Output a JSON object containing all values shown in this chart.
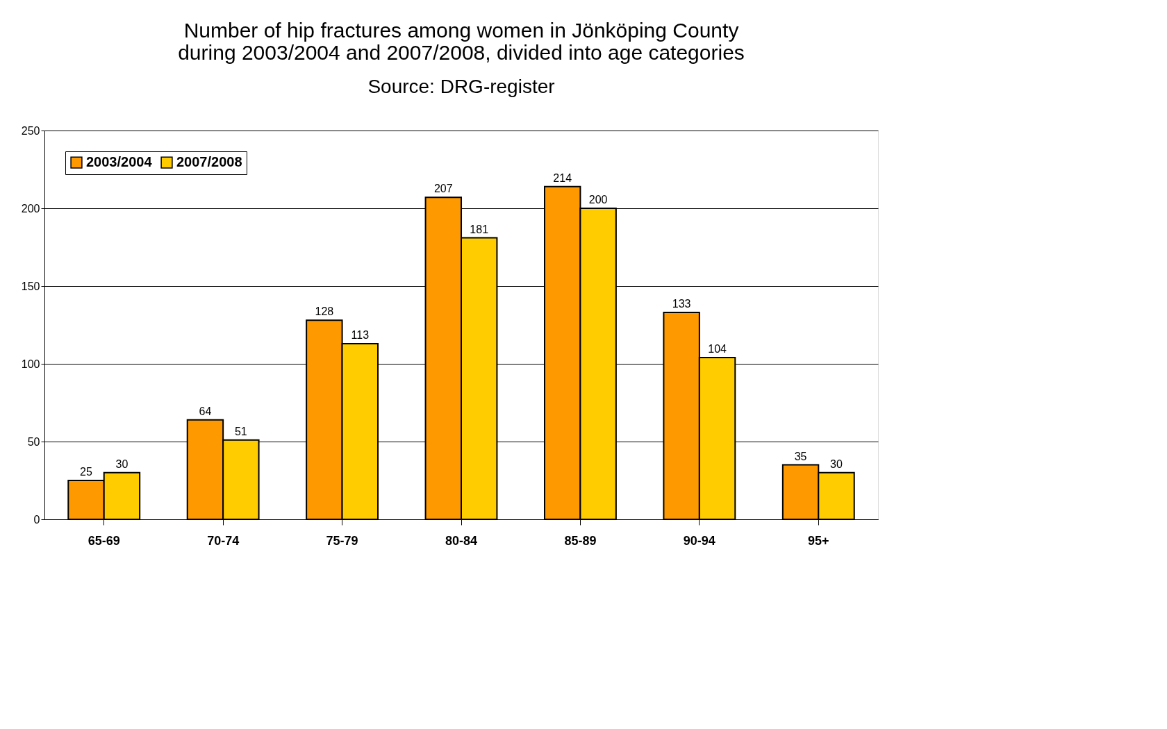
{
  "chart_data": {
    "type": "bar",
    "title": "Number of hip fractures among women in Jönköping County during 2003/2004 and 2007/2008, divided into age categories",
    "subtitle": "Source: DRG-register",
    "categories": [
      "65-69",
      "70-74",
      "75-79",
      "80-84",
      "85-89",
      "90-94",
      "95+"
    ],
    "series": [
      {
        "name": "2003/2004",
        "color": "#ff9900",
        "values": [
          25,
          64,
          128,
          207,
          214,
          133,
          35
        ]
      },
      {
        "name": "2007/2008",
        "color": "#ffcc00",
        "values": [
          30,
          51,
          113,
          181,
          200,
          104,
          30
        ]
      }
    ],
    "ylim": [
      0,
      250
    ],
    "yticks": [
      0,
      50,
      100,
      150,
      200,
      250
    ],
    "grid": "y",
    "legend": "top left",
    "data_labels": true
  }
}
